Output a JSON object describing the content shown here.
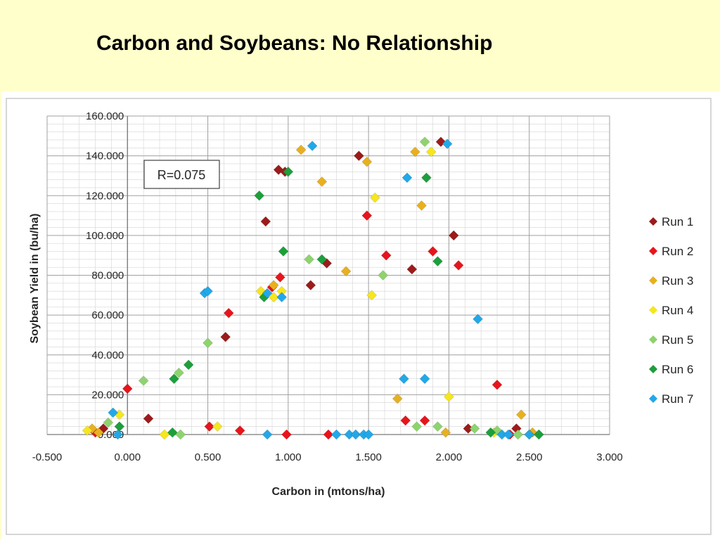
{
  "slide": {
    "title": "Carbon and Soybeans: No Relationship"
  },
  "chart_data": {
    "type": "scatter",
    "title": "",
    "xlabel": "Carbon in (mtons/ha)",
    "ylabel": "Soybean Yield in (bu/ha)",
    "xlim": [
      -0.5,
      3.0
    ],
    "ylim": [
      0,
      160
    ],
    "x_ticks": [
      "-0.500",
      "0.000",
      "0.500",
      "1.000",
      "1.500",
      "2.000",
      "2.500",
      "3.000"
    ],
    "y_ticks": [
      "0.000",
      "20.000",
      "40.000",
      "60.000",
      "80.000",
      "100.000",
      "120.000",
      "140.000",
      "160.000"
    ],
    "grid": true,
    "legend_position": "right",
    "marker": "diamond",
    "annotation": "R=0.075",
    "series": [
      {
        "name": "Run 1",
        "color": "#9b1b1b",
        "points": [
          [
            -0.15,
            3
          ],
          [
            0.13,
            8
          ],
          [
            0.61,
            49
          ],
          [
            0.86,
            107
          ],
          [
            0.94,
            133
          ],
          [
            0.98,
            132
          ],
          [
            1.14,
            75
          ],
          [
            1.24,
            86
          ],
          [
            1.44,
            140
          ],
          [
            1.77,
            83
          ],
          [
            1.95,
            147
          ],
          [
            2.03,
            100
          ],
          [
            2.12,
            3
          ],
          [
            2.42,
            3
          ]
        ]
      },
      {
        "name": "Run 2",
        "color": "#e8141b",
        "points": [
          [
            -0.2,
            1
          ],
          [
            0.0,
            23
          ],
          [
            0.51,
            4
          ],
          [
            0.63,
            61
          ],
          [
            0.7,
            2
          ],
          [
            0.9,
            74
          ],
          [
            0.95,
            79
          ],
          [
            0.99,
            0
          ],
          [
            1.25,
            0
          ],
          [
            1.49,
            110
          ],
          [
            1.61,
            90
          ],
          [
            1.73,
            7
          ],
          [
            1.85,
            7
          ],
          [
            1.9,
            92
          ],
          [
            2.06,
            85
          ],
          [
            2.3,
            25
          ],
          [
            2.38,
            0
          ]
        ]
      },
      {
        "name": "Run 3",
        "color": "#e8b020",
        "points": [
          [
            -0.22,
            3
          ],
          [
            -0.18,
            1
          ],
          [
            0.91,
            75
          ],
          [
            1.08,
            143
          ],
          [
            1.21,
            127
          ],
          [
            1.36,
            82
          ],
          [
            1.49,
            137
          ],
          [
            1.68,
            18
          ],
          [
            1.79,
            142
          ],
          [
            1.83,
            115
          ],
          [
            1.98,
            1
          ],
          [
            2.45,
            10
          ],
          [
            2.52,
            1
          ]
        ]
      },
      {
        "name": "Run 4",
        "color": "#f5e61e",
        "points": [
          [
            -0.25,
            2
          ],
          [
            -0.05,
            10
          ],
          [
            0.23,
            0
          ],
          [
            0.56,
            4
          ],
          [
            0.83,
            72
          ],
          [
            0.91,
            69
          ],
          [
            0.96,
            72
          ],
          [
            1.52,
            70
          ],
          [
            1.54,
            119
          ],
          [
            1.89,
            142
          ],
          [
            2.0,
            19
          ],
          [
            2.28,
            1
          ],
          [
            2.5,
            0
          ]
        ]
      },
      {
        "name": "Run 5",
        "color": "#8ed36e",
        "points": [
          [
            -0.12,
            6
          ],
          [
            0.1,
            27
          ],
          [
            0.32,
            31
          ],
          [
            0.33,
            0
          ],
          [
            0.5,
            46
          ],
          [
            1.13,
            88
          ],
          [
            1.59,
            80
          ],
          [
            1.8,
            4
          ],
          [
            1.85,
            147
          ],
          [
            1.93,
            4
          ],
          [
            2.16,
            3
          ],
          [
            2.3,
            2
          ],
          [
            2.43,
            0
          ]
        ]
      },
      {
        "name": "Run 6",
        "color": "#1e9e3c",
        "points": [
          [
            -0.05,
            4
          ],
          [
            0.28,
            1
          ],
          [
            0.29,
            28
          ],
          [
            0.38,
            35
          ],
          [
            0.82,
            120
          ],
          [
            0.85,
            69
          ],
          [
            0.97,
            92
          ],
          [
            1.0,
            132
          ],
          [
            1.21,
            88
          ],
          [
            1.86,
            129
          ],
          [
            1.93,
            87
          ],
          [
            2.26,
            1
          ],
          [
            2.56,
            0
          ]
        ]
      },
      {
        "name": "Run 7",
        "color": "#22a8e8",
        "points": [
          [
            -0.09,
            11
          ],
          [
            -0.06,
            0
          ],
          [
            0.48,
            71
          ],
          [
            0.5,
            72
          ],
          [
            0.87,
            0
          ],
          [
            0.87,
            71
          ],
          [
            0.96,
            69
          ],
          [
            1.15,
            145
          ],
          [
            1.3,
            0
          ],
          [
            1.38,
            0
          ],
          [
            1.42,
            0
          ],
          [
            1.47,
            0
          ],
          [
            1.5,
            0
          ],
          [
            1.72,
            28
          ],
          [
            1.74,
            129
          ],
          [
            1.85,
            28
          ],
          [
            1.99,
            146
          ],
          [
            2.18,
            58
          ],
          [
            2.33,
            0
          ],
          [
            2.37,
            0
          ],
          [
            2.5,
            0
          ]
        ]
      }
    ]
  }
}
